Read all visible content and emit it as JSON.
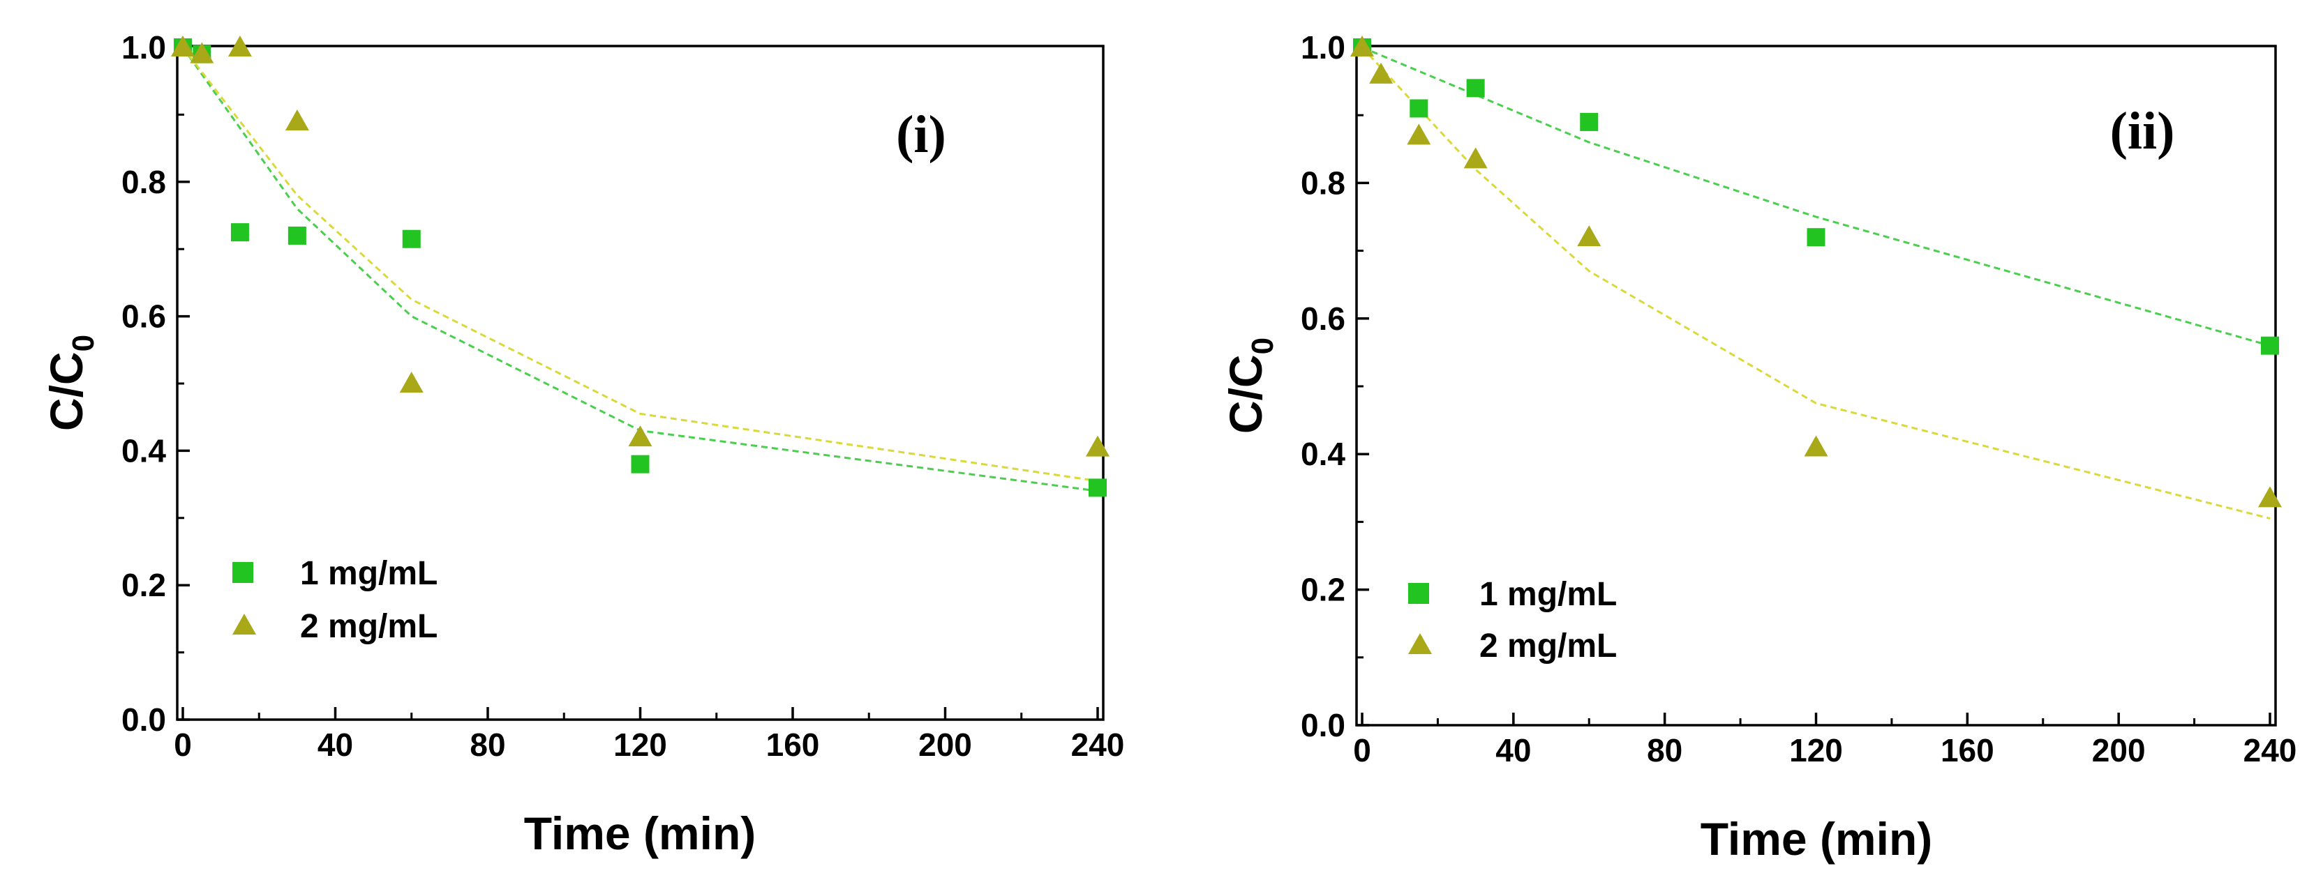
{
  "colors": {
    "series_1": "#22c422",
    "series_2": "#a9a818",
    "fit_1": "#49cf4d",
    "fit_2": "#d9d93a"
  },
  "chart_data": [
    {
      "type": "scatter",
      "panel_label": "(i)",
      "xlabel": "Time (min)",
      "ylabel_main": "C/C",
      "ylabel_sub": "0",
      "xlim": [
        0,
        240
      ],
      "ylim": [
        0,
        1.0
      ],
      "xticks": [
        0,
        40,
        80,
        120,
        160,
        200,
        240
      ],
      "yticks": [
        0.0,
        0.2,
        0.4,
        0.6,
        0.8,
        1.0
      ],
      "xtick_labels": [
        "0",
        "40",
        "80",
        "120",
        "160",
        "200",
        "240"
      ],
      "ytick_labels": [
        "0.0",
        "0.2",
        "0.4",
        "0.6",
        "0.8",
        "1.0"
      ],
      "legend_position": "bottom-left",
      "series": [
        {
          "name": "1 mg/mL",
          "marker": "square",
          "color": "#22c422",
          "x": [
            0,
            5,
            15,
            30,
            60,
            120,
            240
          ],
          "y": [
            1.0,
            0.99,
            0.725,
            0.72,
            0.715,
            0.38,
            0.345
          ],
          "fit": {
            "x": [
              0,
              30,
              60,
              120,
              240
            ],
            "y": [
              1.0,
              0.76,
              0.6,
              0.43,
              0.34
            ]
          }
        },
        {
          "name": "2 mg/mL",
          "marker": "triangle",
          "color": "#a9a818",
          "x": [
            0,
            5,
            15,
            30,
            60,
            120,
            240
          ],
          "y": [
            1.0,
            0.99,
            1.0,
            0.89,
            0.5,
            0.42,
            0.405
          ],
          "fit": {
            "x": [
              0,
              30,
              60,
              120,
              240
            ],
            "y": [
              1.0,
              0.78,
              0.625,
              0.455,
              0.355
            ]
          }
        }
      ]
    },
    {
      "type": "scatter",
      "panel_label": "(ii)",
      "xlabel": "Time (min)",
      "ylabel_main": "C/C",
      "ylabel_sub": "0",
      "xlim": [
        0,
        240
      ],
      "ylim": [
        0,
        1.0
      ],
      "xticks": [
        0,
        40,
        80,
        120,
        160,
        200,
        240
      ],
      "yticks": [
        0.0,
        0.2,
        0.4,
        0.6,
        0.8,
        1.0
      ],
      "xtick_labels": [
        "0",
        "40",
        "80",
        "120",
        "160",
        "200",
        "240"
      ],
      "ytick_labels": [
        "0.0",
        "0.2",
        "0.4",
        "0.6",
        "0.8",
        "1.0"
      ],
      "legend_position": "bottom-left",
      "series": [
        {
          "name": "1 mg/mL",
          "marker": "square",
          "color": "#22c422",
          "x": [
            0,
            15,
            30,
            60,
            120,
            240
          ],
          "y": [
            1.0,
            0.91,
            0.94,
            0.89,
            0.72,
            0.56
          ],
          "fit": {
            "x": [
              0,
              30,
              60,
              120,
              240
            ],
            "y": [
              1.0,
              0.93,
              0.86,
              0.75,
              0.56
            ]
          }
        },
        {
          "name": "2 mg/mL",
          "marker": "triangle",
          "color": "#a9a818",
          "x": [
            0,
            5,
            15,
            30,
            60,
            120,
            240
          ],
          "y": [
            1.0,
            0.96,
            0.87,
            0.835,
            0.72,
            0.41,
            0.335
          ],
          "fit": {
            "x": [
              0,
              30,
              60,
              120,
              240
            ],
            "y": [
              1.0,
              0.82,
              0.67,
              0.475,
              0.305
            ]
          }
        }
      ]
    }
  ]
}
